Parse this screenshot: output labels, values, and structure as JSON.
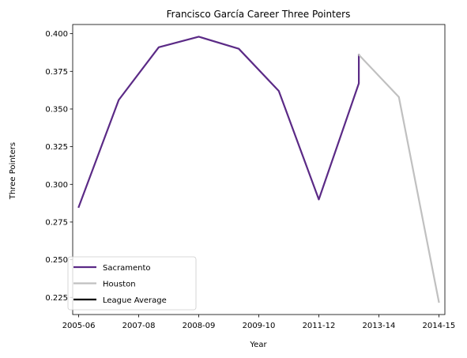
{
  "chart_data": {
    "type": "line",
    "title": "Francisco García  Career Three Pointers",
    "xlabel": "Year",
    "ylabel": "Three Pointers",
    "x_ticks": [
      "2005-06",
      "2007-08",
      "2008-09",
      "2009-10",
      "2011-12",
      "2013-14",
      "2014-15"
    ],
    "y_ticks": [
      "0.225",
      "0.250",
      "0.275",
      "0.300",
      "0.325",
      "0.350",
      "0.375",
      "0.400"
    ],
    "xlim": [
      -0.15,
      9.15
    ],
    "ylim": [
      0.2136,
      0.4061
    ],
    "x_tick_positions": [
      0,
      1.5,
      3,
      4.5,
      6,
      7.5,
      9
    ],
    "y_tick_values": [
      0.225,
      0.25,
      0.275,
      0.3,
      0.325,
      0.35,
      0.375,
      0.4
    ],
    "grid": false,
    "legend_position": "lower-left",
    "series": [
      {
        "name": "Sacramento",
        "color": "#5b2a86",
        "points": [
          [
            0,
            0.285
          ],
          [
            1,
            0.356
          ],
          [
            2,
            0.391
          ],
          [
            3,
            0.398
          ],
          [
            4,
            0.39
          ],
          [
            5,
            0.362
          ],
          [
            6,
            0.29
          ],
          [
            7,
            0.367
          ],
          [
            7,
            0.386
          ]
        ]
      },
      {
        "name": "Houston",
        "color": "#c0c0c0",
        "points": [
          [
            7,
            0.386
          ],
          [
            8,
            0.358
          ],
          [
            9,
            0.222
          ]
        ]
      },
      {
        "name": "League Average",
        "color": "#000000",
        "points": []
      }
    ]
  }
}
